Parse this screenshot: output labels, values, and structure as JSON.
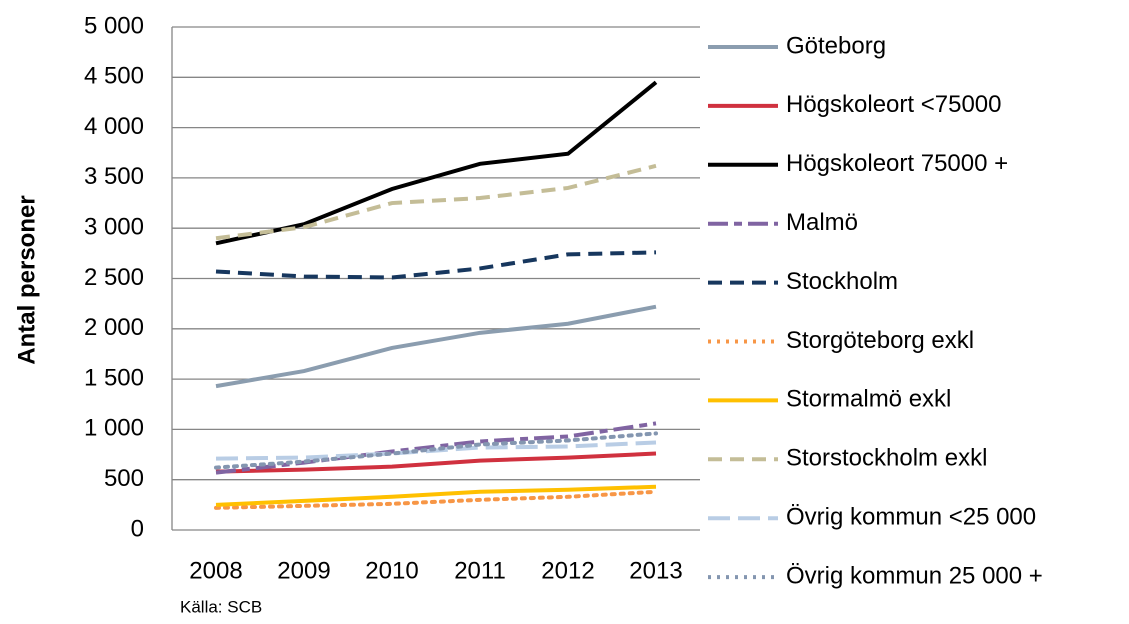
{
  "chart_data": {
    "type": "line",
    "y_label": "Antal personer",
    "source": "Källa: SCB",
    "categories": [
      "2008",
      "2009",
      "2010",
      "2011",
      "2012",
      "2013"
    ],
    "ylim": [
      0,
      5000
    ],
    "yticks": [
      0,
      500,
      {
        "value": 1000,
        "label": "1 000"
      },
      {
        "value": 1500,
        "label": "1 500"
      },
      {
        "value": 2000,
        "label": "2 000"
      },
      {
        "value": 2500,
        "label": "2 500"
      },
      {
        "value": 3000,
        "label": "3 000"
      },
      {
        "value": 3500,
        "label": "3 500"
      },
      {
        "value": 4000,
        "label": "4 000"
      },
      {
        "value": 4500,
        "label": "4 500"
      },
      {
        "value": 5000,
        "label": "5 000"
      }
    ],
    "grid": true,
    "legend": "right",
    "series": [
      {
        "name": "Göteborg",
        "color": "#8b9daf",
        "style": "solid",
        "values": [
          1430,
          1580,
          1810,
          1960,
          2050,
          2220
        ]
      },
      {
        "name": "Högskoleort <75000",
        "color": "#d0313f",
        "style": "solid",
        "values": [
          580,
          600,
          630,
          690,
          720,
          760
        ]
      },
      {
        "name": "Högskoleort 75000 +",
        "color": "#000000",
        "style": "solid",
        "values": [
          2850,
          3040,
          3390,
          3640,
          3740,
          4450
        ]
      },
      {
        "name": "Malmö",
        "color": "#8064a2",
        "style": "dashdot",
        "values": [
          570,
          670,
          780,
          880,
          930,
          1060
        ]
      },
      {
        "name": "Stockholm",
        "color": "#17375e",
        "style": "dashed",
        "values": [
          2570,
          2520,
          2510,
          2600,
          2740,
          2760
        ]
      },
      {
        "name": "Storgöteborg exkl",
        "color": "#f79646",
        "style": "dotted",
        "values": [
          220,
          240,
          260,
          300,
          330,
          380
        ]
      },
      {
        "name": "Stormalmö exkl",
        "color": "#ffc000",
        "style": "solid",
        "values": [
          250,
          290,
          330,
          380,
          400,
          430
        ]
      },
      {
        "name": "Storstockholm exkl",
        "color": "#c4bd97",
        "style": "dashed",
        "values": [
          2900,
          3010,
          3250,
          3300,
          3400,
          3620
        ]
      },
      {
        "name": "Övrig kommun <25 000",
        "color": "#b9cde5",
        "style": "longdash",
        "values": [
          710,
          720,
          760,
          820,
          830,
          870
        ]
      },
      {
        "name": "Övrig kommun 25 000 +",
        "color": "#8496b0",
        "style": "dotted",
        "values": [
          620,
          680,
          760,
          850,
          890,
          960
        ]
      }
    ]
  }
}
